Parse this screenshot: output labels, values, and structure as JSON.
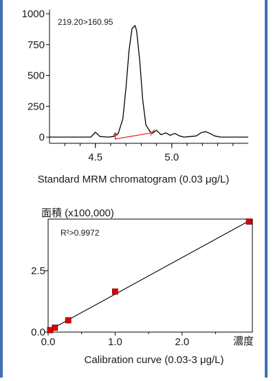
{
  "colors": {
    "frame_border": "#3e6fb0",
    "trace": "#000000",
    "baseline_arrow": "#e0241b",
    "point_fill": "#e00000"
  },
  "chart_data": [
    {
      "type": "line",
      "title": "",
      "xlabel": "",
      "ylabel": "",
      "annotation": "219.20>160.95",
      "caption": "Standard MRM chromatogram (0.03 μg/L)",
      "xlim": [
        4.2,
        5.5
      ],
      "ylim": [
        -50,
        1000
      ],
      "x_ticks": [
        4.5,
        5.0
      ],
      "x_tick_labels": [
        "4.5",
        "5.0"
      ],
      "y_ticks": [
        0,
        250,
        500,
        750,
        1000
      ],
      "y_tick_labels": [
        "0",
        "250",
        "500",
        "750",
        "1000"
      ],
      "grid": false,
      "series": [
        {
          "x": [
            4.2,
            4.3,
            4.4,
            4.47,
            4.5,
            4.53,
            4.58,
            4.62,
            4.65,
            4.68,
            4.7,
            4.72,
            4.74,
            4.76,
            4.77,
            4.79,
            4.81,
            4.83,
            4.85,
            4.87,
            4.9,
            4.93,
            4.96,
            4.99,
            5.02,
            5.05,
            5.08,
            5.12,
            5.16,
            5.19,
            5.22,
            5.25,
            5.28,
            5.32,
            5.4,
            5.5
          ],
          "y": [
            0,
            0,
            0,
            0,
            40,
            5,
            0,
            5,
            30,
            150,
            400,
            700,
            880,
            905,
            860,
            620,
            300,
            100,
            60,
            30,
            55,
            20,
            35,
            15,
            30,
            10,
            0,
            5,
            10,
            35,
            45,
            30,
            10,
            0,
            0,
            0
          ]
        }
      ],
      "baseline": {
        "x_start": 4.63,
        "y_start": -15,
        "x_end": 4.87,
        "y_end": 35
      }
    },
    {
      "type": "scatter",
      "title": "",
      "ylabel": "面積 (x100,000)",
      "xlabel": "濃度",
      "annotation": "R²>0.9972",
      "caption": "Calibration curve (0.03-3 μg/L)",
      "xlim": [
        0,
        3.05
      ],
      "ylim": [
        0,
        4.6
      ],
      "x_ticks": [
        0,
        1,
        2
      ],
      "x_tick_labels": [
        "0.0",
        "1.0",
        "2.0"
      ],
      "y_ticks": [
        0,
        2.5
      ],
      "y_tick_labels": [
        "0.0",
        "2.5"
      ],
      "grid": false,
      "points": [
        {
          "x": 0.03,
          "y": 0.08
        },
        {
          "x": 0.1,
          "y": 0.18
        },
        {
          "x": 0.3,
          "y": 0.48
        },
        {
          "x": 1.0,
          "y": 1.65
        },
        {
          "x": 3.0,
          "y": 4.5
        }
      ],
      "fit_line": {
        "x_start": 0,
        "y_start": 0.05,
        "x_end": 3.05,
        "y_end": 4.6
      }
    }
  ]
}
